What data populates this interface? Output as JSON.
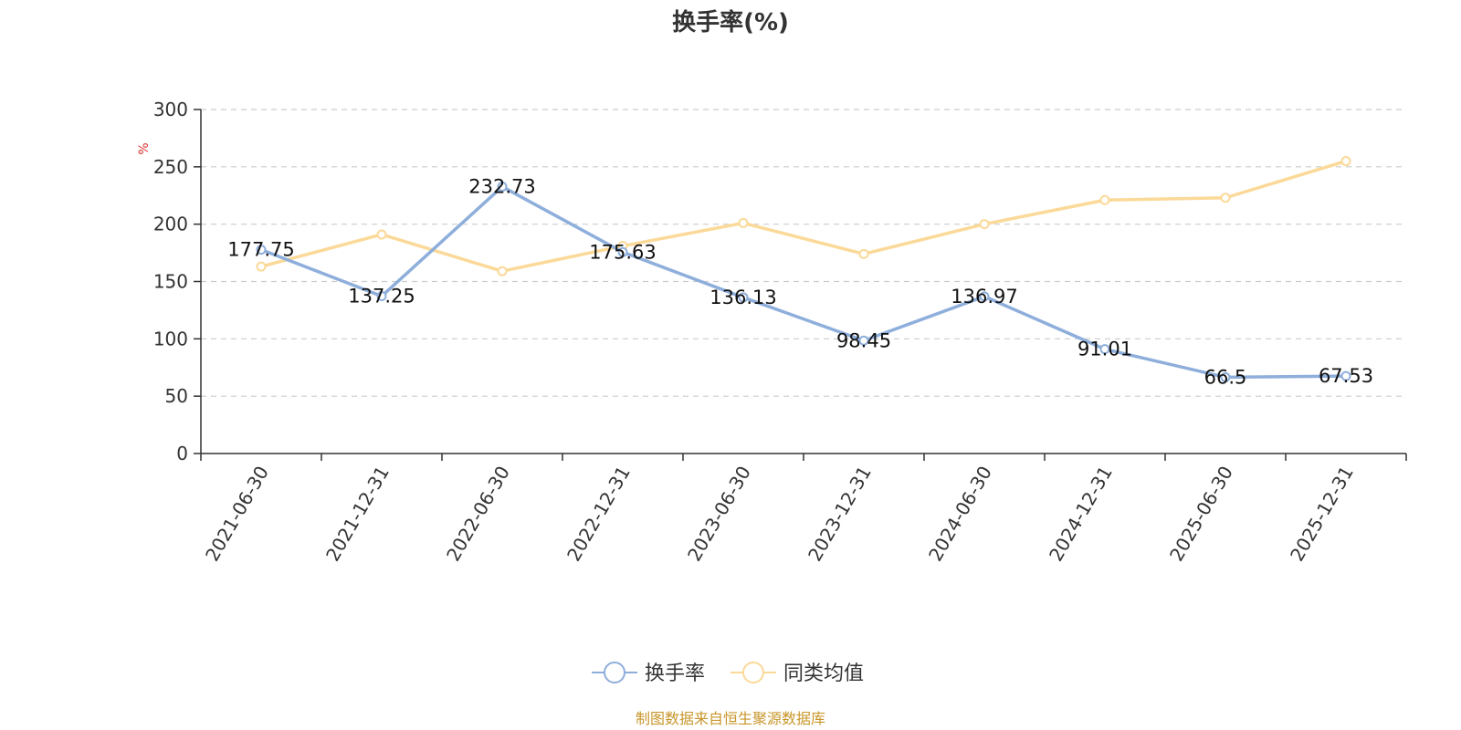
{
  "chart_data": {
    "type": "line",
    "title": "换手率(%)",
    "ylabel": "%",
    "xlabel": "",
    "ylim": [
      0,
      300
    ],
    "yticks": [
      0,
      50,
      100,
      150,
      200,
      250,
      300
    ],
    "grid": true,
    "categories": [
      "2021-06-30",
      "2021-12-31",
      "2022-06-30",
      "2022-12-31",
      "2023-06-30",
      "2023-12-31",
      "2024-06-30",
      "2024-12-31",
      "2025-06-30",
      "2025-12-31"
    ],
    "series": [
      {
        "name": "换手率",
        "color": "#8eaedb",
        "values": [
          177.75,
          137.25,
          232.73,
          175.63,
          136.13,
          98.45,
          136.97,
          91.01,
          66.5,
          67.53
        ],
        "labels": [
          "177.75",
          "137.25",
          "232.73",
          "175.63",
          "136.13",
          "98.45",
          "136.97",
          "91.01",
          "66.5",
          "67.53"
        ]
      },
      {
        "name": "同类均值",
        "color": "#fbd998",
        "values": [
          163,
          191,
          159,
          181,
          201,
          174,
          200,
          221,
          223,
          255
        ]
      }
    ],
    "legend_position": "bottom",
    "source": "制图数据来自恒生聚源数据库",
    "source_color": "#c8962a",
    "ylabel_color": "#e03030"
  }
}
